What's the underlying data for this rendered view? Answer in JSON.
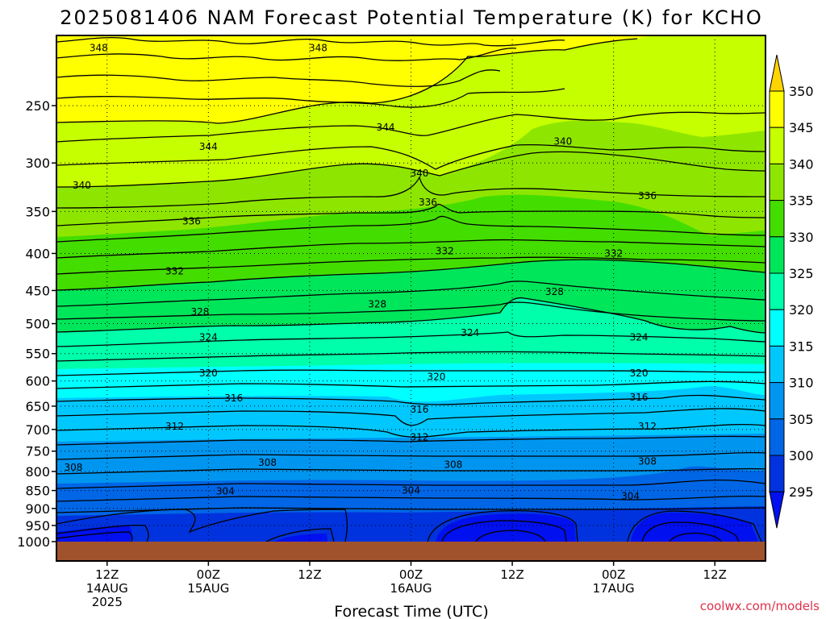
{
  "chart_data": {
    "type": "heatmap",
    "title": "2025081406 NAM Forecast Potential Temperature (K) for KCHO",
    "xlabel": "Forecast Time (UTC)",
    "ylabel": "",
    "credit": "coolwx.com/models",
    "x_ticks": [
      {
        "hour": 6,
        "l1": "12Z",
        "l2": "14AUG",
        "l3": "2025"
      },
      {
        "hour": 18,
        "l1": "00Z",
        "l2": "15AUG",
        "l3": ""
      },
      {
        "hour": 30,
        "l1": "12Z",
        "l2": "",
        "l3": ""
      },
      {
        "hour": 42,
        "l1": "00Z",
        "l2": "16AUG",
        "l3": ""
      },
      {
        "hour": 54,
        "l1": "12Z",
        "l2": "",
        "l3": ""
      },
      {
        "hour": 66,
        "l1": "00Z",
        "l2": "17AUG",
        "l3": ""
      },
      {
        "hour": 78,
        "l1": "12Z",
        "l2": "",
        "l3": ""
      }
    ],
    "x_range_hours": [
      0,
      84
    ],
    "y_ticks_hpa": [
      250,
      300,
      350,
      400,
      450,
      500,
      550,
      600,
      650,
      700,
      750,
      800,
      850,
      900,
      950,
      1000
    ],
    "y_range_hpa": [
      200,
      1010
    ],
    "grid": "dotted at ticks",
    "colorbar": {
      "levels": [
        350,
        345,
        340,
        335,
        330,
        325,
        320,
        315,
        310,
        305,
        300,
        295
      ],
      "colors": [
        "#ffd400",
        "#ffff00",
        "#c6ff00",
        "#8ee600",
        "#44dd00",
        "#00e65a",
        "#00ffaa",
        "#00ffff",
        "#00c8ff",
        "#0096f0",
        "#0066e6",
        "#0033dd",
        "#0010ee"
      ],
      "extend": "both"
    },
    "contour_interval_K": 2,
    "contour_labels": [
      {
        "value": "348",
        "hour": 5,
        "hpa": 208
      },
      {
        "value": "348",
        "hour": 31,
        "hpa": 208
      },
      {
        "value": "344",
        "hour": 39,
        "hpa": 268
      },
      {
        "value": "344",
        "hour": 18,
        "hpa": 285
      },
      {
        "value": "340",
        "hour": 60,
        "hpa": 280
      },
      {
        "value": "340",
        "hour": 43,
        "hpa": 310
      },
      {
        "value": "340",
        "hour": 3,
        "hpa": 322
      },
      {
        "value": "336",
        "hour": 44,
        "hpa": 340
      },
      {
        "value": "336",
        "hour": 70,
        "hpa": 333
      },
      {
        "value": "336",
        "hour": 16,
        "hpa": 361
      },
      {
        "value": "332",
        "hour": 46,
        "hpa": 397
      },
      {
        "value": "332",
        "hour": 66,
        "hpa": 400
      },
      {
        "value": "332",
        "hour": 14,
        "hpa": 423
      },
      {
        "value": "328",
        "hour": 59,
        "hpa": 452
      },
      {
        "value": "328",
        "hour": 38,
        "hpa": 470
      },
      {
        "value": "328",
        "hour": 17,
        "hpa": 482
      },
      {
        "value": "324",
        "hour": 18,
        "hpa": 522
      },
      {
        "value": "324",
        "hour": 49,
        "hpa": 515
      },
      {
        "value": "324",
        "hour": 69,
        "hpa": 522
      },
      {
        "value": "320",
        "hour": 18,
        "hpa": 585
      },
      {
        "value": "320",
        "hour": 45,
        "hpa": 592
      },
      {
        "value": "320",
        "hour": 69,
        "hpa": 585
      },
      {
        "value": "316",
        "hour": 21,
        "hpa": 634
      },
      {
        "value": "316",
        "hour": 43,
        "hpa": 657
      },
      {
        "value": "316",
        "hour": 69,
        "hpa": 632
      },
      {
        "value": "312",
        "hour": 14,
        "hpa": 693
      },
      {
        "value": "312",
        "hour": 43,
        "hpa": 718
      },
      {
        "value": "312",
        "hour": 70,
        "hpa": 693
      },
      {
        "value": "308",
        "hour": 2,
        "hpa": 790
      },
      {
        "value": "308",
        "hour": 25,
        "hpa": 778
      },
      {
        "value": "308",
        "hour": 47,
        "hpa": 783
      },
      {
        "value": "308",
        "hour": 70,
        "hpa": 775
      },
      {
        "value": "304",
        "hour": 20,
        "hpa": 852
      },
      {
        "value": "304",
        "hour": 42,
        "hpa": 850
      },
      {
        "value": "304",
        "hour": 68,
        "hpa": 865
      }
    ]
  }
}
